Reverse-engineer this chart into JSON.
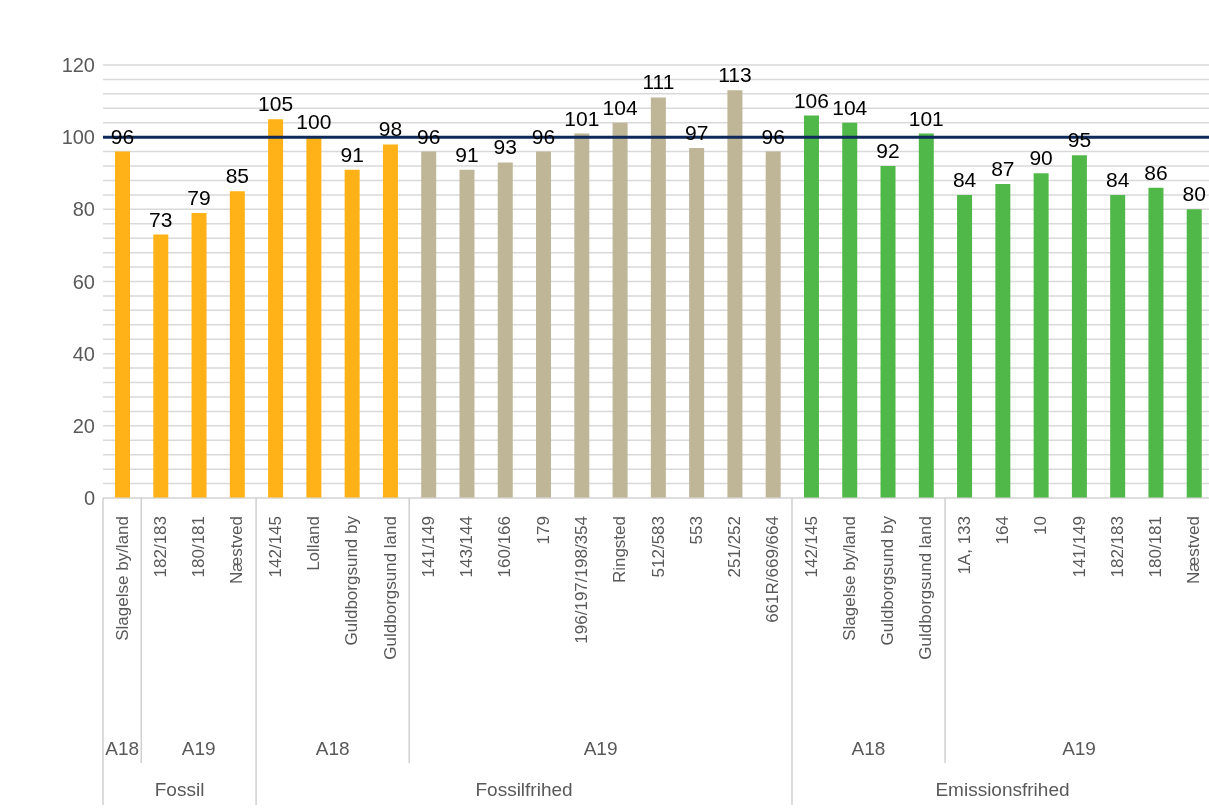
{
  "chart_data": {
    "type": "bar",
    "categories": [
      "Slagelse by/land",
      "182/183",
      "180/181",
      "Næstved",
      "142/145",
      "Lolland",
      "Guldborgsund by",
      "Guldborgsund land",
      "141/149",
      "143/144",
      "160/166",
      "179",
      "196/197/198/354",
      "Ringsted",
      "512/583",
      "553",
      "251/252",
      "661R/669/664",
      "142/145",
      "Slagelse by/land",
      "Guldborgsund by",
      "Guldborgsund land",
      "1A, 133",
      "164",
      "10",
      "141/149",
      "182/183",
      "180/181",
      "Næstved"
    ],
    "values": [
      96,
      73,
      79,
      85,
      105,
      100,
      91,
      98,
      96,
      91,
      93,
      96,
      101,
      104,
      111,
      97,
      113,
      96,
      106,
      104,
      92,
      101,
      84,
      87,
      90,
      95,
      84,
      86,
      80
    ],
    "colors": [
      "#ffb217",
      "#ffb217",
      "#ffb217",
      "#ffb217",
      "#ffb217",
      "#ffb217",
      "#ffb217",
      "#ffb217",
      "#bfb597",
      "#bfb597",
      "#bfb597",
      "#bfb597",
      "#bfb597",
      "#bfb597",
      "#bfb597",
      "#bfb597",
      "#bfb597",
      "#bfb597",
      "#50b848",
      "#50b848",
      "#50b848",
      "#50b848",
      "#50b848",
      "#50b848",
      "#50b848",
      "#50b848",
      "#50b848",
      "#50b848",
      "#50b848"
    ],
    "data_labels": true,
    "ylim": [
      0,
      120
    ],
    "yticks": [
      0,
      {
        "value": 4,
        "label": null
      },
      {
        "value": 8,
        "label": null
      },
      {
        "value": 12,
        "label": null
      },
      {
        "value": 16,
        "label": null
      },
      20,
      {
        "value": 24,
        "label": null
      },
      {
        "value": 28,
        "label": null
      },
      {
        "value": 32,
        "label": null
      },
      {
        "value": 36,
        "label": null
      },
      40,
      {
        "value": 44,
        "label": null
      },
      {
        "value": 48,
        "label": null
      },
      {
        "value": 52,
        "label": null
      },
      {
        "value": 56,
        "label": null
      },
      60,
      {
        "value": 64,
        "label": null
      },
      {
        "value": 68,
        "label": null
      },
      {
        "value": 72,
        "label": null
      },
      {
        "value": 76,
        "label": null
      },
      80,
      {
        "value": 84,
        "label": null
      },
      {
        "value": 88,
        "label": null
      },
      {
        "value": 92,
        "label": null
      },
      {
        "value": 96,
        "label": null
      },
      100,
      {
        "value": 104,
        "label": null
      },
      {
        "value": 108,
        "label": null
      },
      {
        "value": 112,
        "label": null
      },
      {
        "value": 116,
        "label": null
      },
      120
    ],
    "grid": "y",
    "ref_lines": [
      {
        "axis": "y",
        "value": 100,
        "color": "#0e2a5a"
      }
    ],
    "annotations": [
      "A18",
      "A19",
      "A18",
      "A19",
      "A18",
      "A19",
      "Fossil",
      "Fossilfrihed",
      "Emissionsfrihed"
    ]
  }
}
